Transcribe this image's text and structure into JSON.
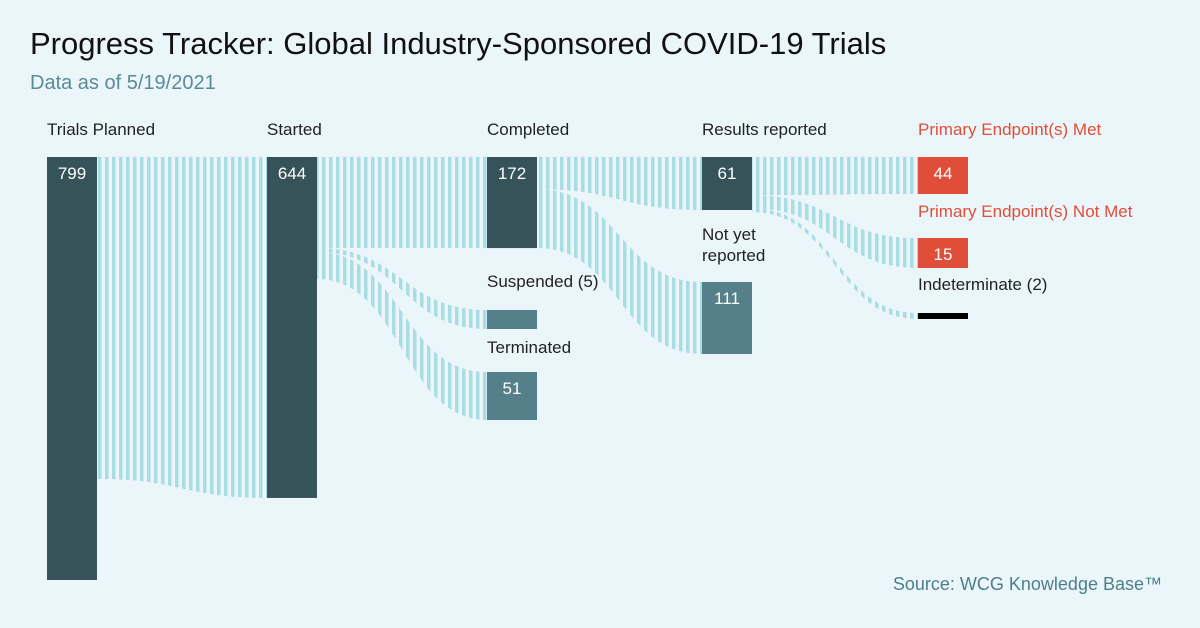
{
  "title": "Progress Tracker: Global Industry-Sponsored COVID-19 Trials",
  "subtitle": "Data as of 5/19/2021",
  "source": "Source: WCG Knowledge Base™",
  "colors": {
    "background": "#ebf6fb",
    "dark_bar": "#36535a",
    "light_bar": "#568089",
    "met": "#e04e39",
    "indeterminate": "#000000",
    "flow_stripe": "#a9dce3",
    "label": "#222222",
    "met_label": "#e04e39"
  },
  "chart_data": {
    "type": "sankey",
    "stages": [
      {
        "id": "planned",
        "label": "Trials Planned",
        "value": 799,
        "value_label": "799",
        "style": "dark"
      },
      {
        "id": "started",
        "label": "Started",
        "value": 644,
        "value_label": "644",
        "style": "dark"
      },
      {
        "id": "completed",
        "label": "Completed",
        "value": 172,
        "value_label": "172",
        "style": "dark"
      },
      {
        "id": "suspended",
        "label": "Suspended (5)",
        "value": 5,
        "value_label": "",
        "style": "light"
      },
      {
        "id": "terminated",
        "label": "Terminated",
        "value": 51,
        "value_label": "51",
        "style": "light"
      },
      {
        "id": "results",
        "label": "Results reported",
        "value": 61,
        "value_label": "61",
        "style": "dark"
      },
      {
        "id": "notyet",
        "label": "Not yet reported",
        "value": 111,
        "value_label": "111",
        "style": "light"
      },
      {
        "id": "met",
        "label": "Primary Endpoint(s) Met",
        "value": 44,
        "value_label": "44",
        "style": "met"
      },
      {
        "id": "notmet",
        "label": "Primary Endpoint(s) Not Met",
        "value": 15,
        "value_label": "15",
        "style": "met"
      },
      {
        "id": "indeterminate",
        "label": "Indeterminate (2)",
        "value": 2,
        "value_label": "",
        "style": "indeterminate"
      }
    ],
    "flows": [
      {
        "from": "planned",
        "to": "started",
        "value": 644
      },
      {
        "from": "started",
        "to": "completed",
        "value": 172
      },
      {
        "from": "started",
        "to": "suspended",
        "value": 5
      },
      {
        "from": "started",
        "to": "terminated",
        "value": 51
      },
      {
        "from": "completed",
        "to": "results",
        "value": 61
      },
      {
        "from": "completed",
        "to": "notyet",
        "value": 111
      },
      {
        "from": "results",
        "to": "met",
        "value": 44
      },
      {
        "from": "results",
        "to": "notmet",
        "value": 15
      },
      {
        "from": "results",
        "to": "indeterminate",
        "value": 2
      }
    ]
  }
}
